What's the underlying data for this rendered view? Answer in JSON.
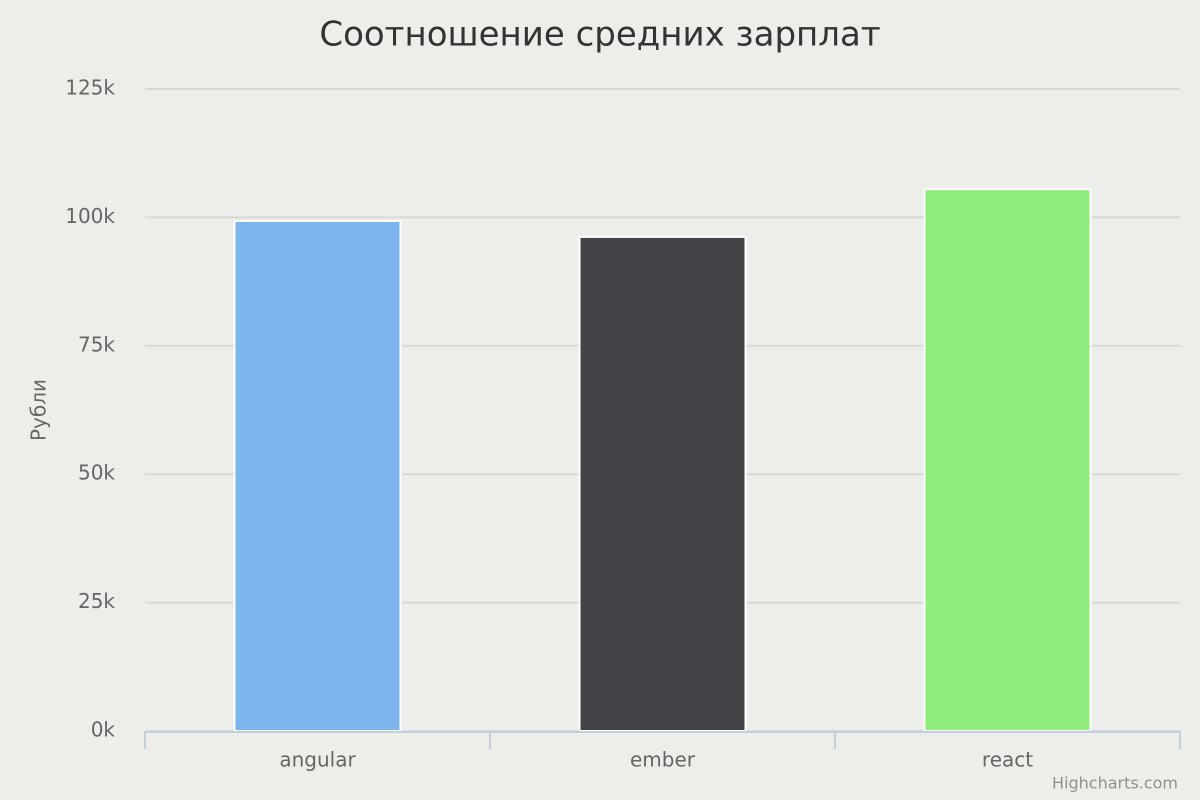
{
  "chart_data": {
    "type": "bar",
    "title": "Соотношение средних зарплат",
    "y_label": "Рубли",
    "categories": [
      "angular",
      "ember",
      "react"
    ],
    "values": [
      99300,
      96200,
      105500
    ],
    "colors": [
      "#7cb5ec",
      "#434348",
      "#90ed7d"
    ],
    "ylim": [
      0,
      125000
    ],
    "yticks": [
      {
        "value": 0,
        "label": "0k"
      },
      {
        "value": 25000,
        "label": "25k"
      },
      {
        "value": 50000,
        "label": "50k"
      },
      {
        "value": 75000,
        "label": "75k"
      },
      {
        "value": 100000,
        "label": "100k"
      },
      {
        "value": 125000,
        "label": "125k"
      }
    ],
    "grid": true,
    "credits": "Highcharts.com"
  }
}
